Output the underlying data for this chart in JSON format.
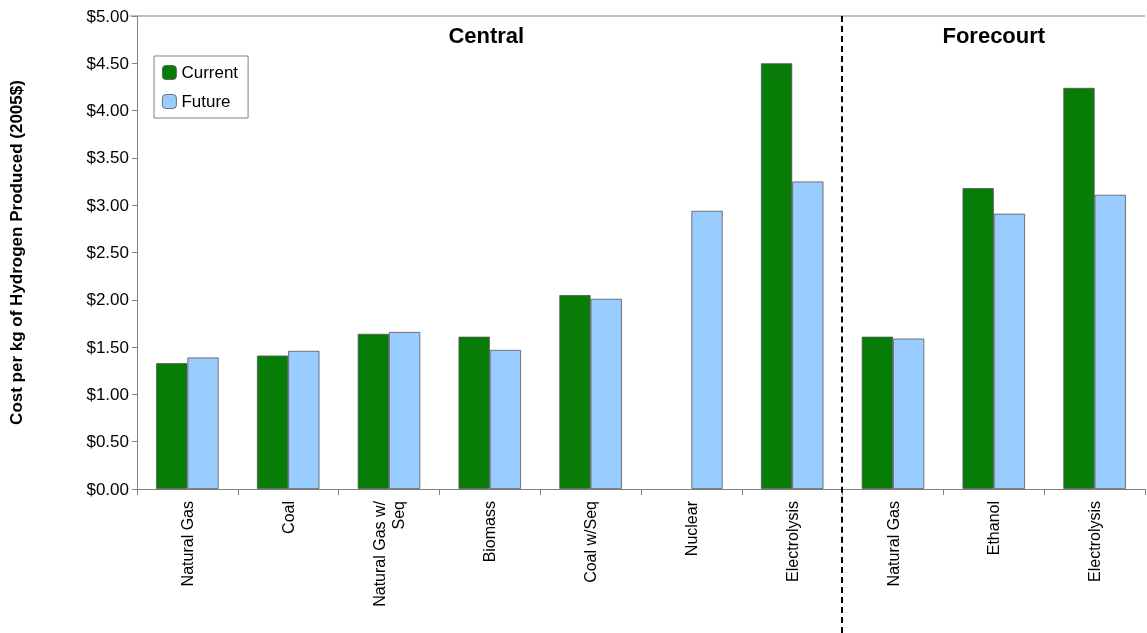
{
  "chart_data": {
    "type": "bar",
    "ylabel": "Cost per kg of Hydrogen Produced (2005$)",
    "categories": [
      "Natural Gas",
      "Coal",
      "Natural Gas w/Seq",
      "Biomass",
      "Coal w/Seq",
      "Nuclear",
      "Electrolysis",
      "Natural Gas",
      "Ethanol",
      "Electrolysis"
    ],
    "series": [
      {
        "name": "Current",
        "color": "#077c07",
        "values": [
          1.33,
          1.41,
          1.64,
          1.61,
          2.05,
          null,
          4.5,
          1.61,
          3.18,
          4.24
        ]
      },
      {
        "name": "Future",
        "color": "#99ccff",
        "values": [
          1.39,
          1.46,
          1.66,
          1.47,
          2.01,
          2.94,
          3.25,
          1.59,
          2.91,
          3.11
        ]
      }
    ],
    "ylim": [
      0,
      5
    ],
    "yticks": [
      {
        "value": 0,
        "label": "$0.00"
      },
      {
        "value": 0.5,
        "label": "$0.50"
      },
      {
        "value": 1,
        "label": "$1.00"
      },
      {
        "value": 1.5,
        "label": "$1.50"
      },
      {
        "value": 2,
        "label": "$2.00"
      },
      {
        "value": 2.5,
        "label": "$2.50"
      },
      {
        "value": 3,
        "label": "$3.00"
      },
      {
        "value": 3.5,
        "label": "$3.50"
      },
      {
        "value": 4,
        "label": "$4.00"
      },
      {
        "value": 4.5,
        "label": "$4.50"
      },
      {
        "value": 5,
        "label": "$5.00"
      }
    ],
    "annotations": [
      "Central",
      "Forecourt"
    ],
    "grid": false,
    "legend": "top left"
  }
}
